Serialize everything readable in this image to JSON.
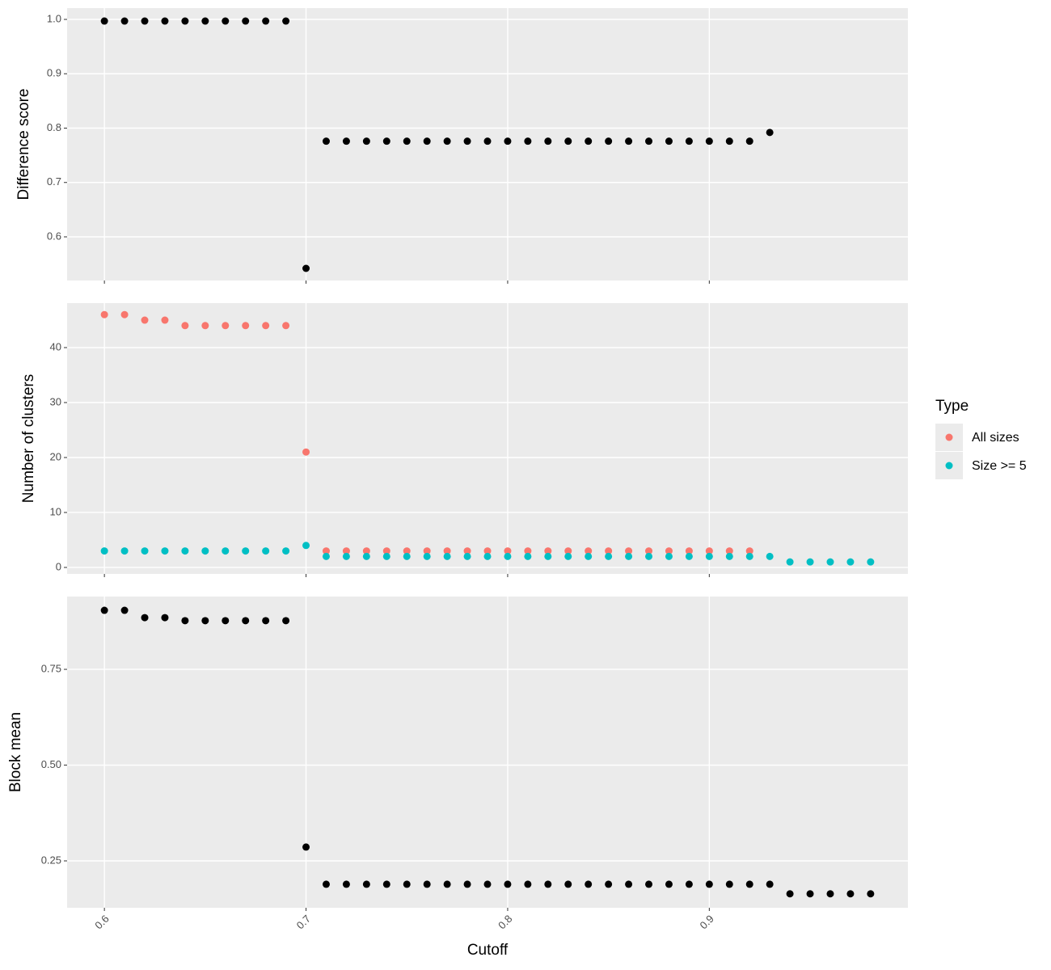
{
  "chart_data": [
    {
      "type": "scatter",
      "ylabel": "Difference score",
      "x": [
        0.6,
        0.61,
        0.62,
        0.63,
        0.64,
        0.65,
        0.66,
        0.67,
        0.68,
        0.69,
        0.7,
        0.71,
        0.72,
        0.73,
        0.74,
        0.75,
        0.76,
        0.77,
        0.78,
        0.79,
        0.8,
        0.81,
        0.82,
        0.83,
        0.84,
        0.85,
        0.86,
        0.87,
        0.88,
        0.89,
        0.9,
        0.91,
        0.92,
        0.93,
        0.94,
        0.95,
        0.96,
        0.97,
        0.98
      ],
      "values": [
        0.997,
        0.997,
        0.997,
        0.997,
        0.997,
        0.997,
        0.997,
        0.997,
        0.997,
        0.997,
        0.542,
        0.776,
        0.776,
        0.776,
        0.776,
        0.776,
        0.776,
        0.776,
        0.776,
        0.776,
        0.776,
        0.776,
        0.776,
        0.776,
        0.776,
        0.776,
        0.776,
        0.776,
        0.776,
        0.776,
        0.776,
        0.776,
        0.776,
        0.792,
        null,
        null,
        null,
        null,
        null
      ],
      "color": "#000000",
      "xlim": [
        0.5815,
        0.9985
      ],
      "xticks": [
        0.6,
        0.7,
        0.8,
        0.9
      ],
      "ylim": [
        0.5197,
        1.0208
      ],
      "yticks": [
        0.6,
        0.7,
        0.8,
        0.9,
        {
          "value": 1.0,
          "label": "1.0"
        }
      ],
      "grid": true
    },
    {
      "type": "scatter",
      "ylabel": "Number of clusters",
      "legend_title": "Type",
      "legend": "right",
      "x": [
        0.6,
        0.61,
        0.62,
        0.63,
        0.64,
        0.65,
        0.66,
        0.67,
        0.68,
        0.69,
        0.7,
        0.71,
        0.72,
        0.73,
        0.74,
        0.75,
        0.76,
        0.77,
        0.78,
        0.79,
        0.8,
        0.81,
        0.82,
        0.83,
        0.84,
        0.85,
        0.86,
        0.87,
        0.88,
        0.89,
        0.9,
        0.91,
        0.92,
        0.93,
        0.94,
        0.95,
        0.96,
        0.97,
        0.98
      ],
      "series": [
        {
          "name": "All sizes",
          "color": "#F8766D",
          "values": [
            46,
            46,
            45,
            45,
            44,
            44,
            44,
            44,
            44,
            44,
            21,
            3,
            3,
            3,
            3,
            3,
            3,
            3,
            3,
            3,
            3,
            3,
            3,
            3,
            3,
            3,
            3,
            3,
            3,
            3,
            3,
            3,
            3,
            null,
            null,
            null,
            null,
            null,
            null
          ]
        },
        {
          "name": "Size >= 5",
          "color": "#00BFC4",
          "values": [
            3,
            3,
            3,
            3,
            3,
            3,
            3,
            3,
            3,
            3,
            4,
            2,
            2,
            2,
            2,
            2,
            2,
            2,
            2,
            2,
            2,
            2,
            2,
            2,
            2,
            2,
            2,
            2,
            2,
            2,
            2,
            2,
            2,
            2,
            1,
            1,
            1,
            1,
            1
          ]
        }
      ],
      "xlim": [
        0.5815,
        0.9985
      ],
      "xticks": [
        0.6,
        0.7,
        0.8,
        0.9
      ],
      "ylim": [
        -1.18,
        48.09
      ],
      "yticks": [
        0,
        10,
        20,
        30,
        40
      ],
      "grid": true
    },
    {
      "type": "scatter",
      "ylabel": "Block mean",
      "xlabel": "Cutoff",
      "x": [
        0.6,
        0.61,
        0.62,
        0.63,
        0.64,
        0.65,
        0.66,
        0.67,
        0.68,
        0.69,
        0.7,
        0.71,
        0.72,
        0.73,
        0.74,
        0.75,
        0.76,
        0.77,
        0.78,
        0.79,
        0.8,
        0.81,
        0.82,
        0.83,
        0.84,
        0.85,
        0.86,
        0.87,
        0.88,
        0.89,
        0.9,
        0.91,
        0.92,
        0.93,
        0.94,
        0.95,
        0.96,
        0.97,
        0.98
      ],
      "values": [
        0.904,
        0.904,
        0.885,
        0.885,
        0.877,
        0.877,
        0.877,
        0.877,
        0.877,
        0.877,
        0.286,
        0.189,
        0.189,
        0.189,
        0.189,
        0.189,
        0.189,
        0.189,
        0.189,
        0.189,
        0.189,
        0.189,
        0.189,
        0.189,
        0.189,
        0.189,
        0.189,
        0.189,
        0.189,
        0.189,
        0.189,
        0.189,
        0.189,
        0.189,
        0.164,
        0.164,
        0.164,
        0.164,
        0.164
      ],
      "color": "#000000",
      "xlim": [
        0.5815,
        0.9985
      ],
      "xticks": [
        {
          "value": 0.6,
          "label": "0.6"
        },
        {
          "value": 0.7,
          "label": "0.7"
        },
        {
          "value": 0.8,
          "label": "0.8"
        },
        {
          "value": 0.9,
          "label": "0.9"
        }
      ],
      "ylim": [
        0.1276,
        0.94
      ],
      "yticks": [
        {
          "value": 0.25,
          "label": "0.25"
        },
        {
          "value": 0.5,
          "label": "0.50"
        },
        {
          "value": 0.75,
          "label": "0.75"
        }
      ],
      "grid": true
    }
  ]
}
